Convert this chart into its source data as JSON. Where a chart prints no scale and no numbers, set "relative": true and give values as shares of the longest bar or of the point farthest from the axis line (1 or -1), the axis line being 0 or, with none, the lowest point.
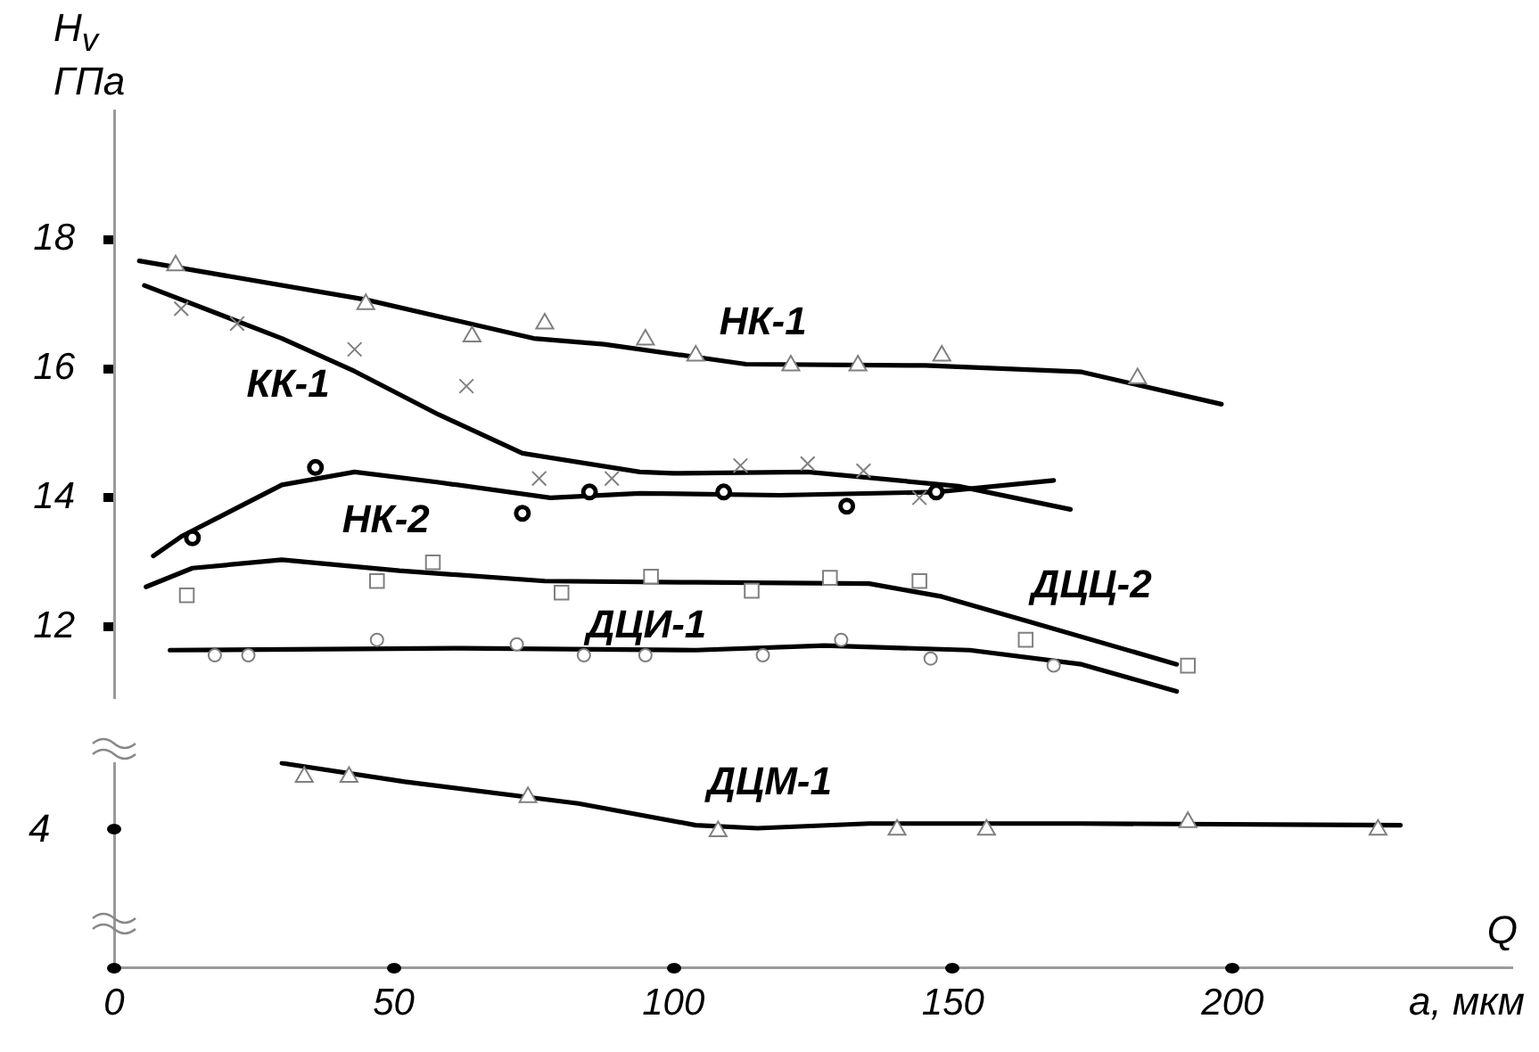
{
  "chart_data": [
    {
      "type": "line",
      "ylabel": "H$_{v}$ ГПа",
      "xticks": [
        0,
        50,
        100,
        150,
        200
      ],
      "ylim": [
        10.9,
        20
      ],
      "yticks": [
        12,
        14,
        16,
        18
      ],
      "tick_labels": "y",
      "grid": false,
      "legend": false,
      "series": [
        {
          "type": "scatter",
          "marker": "triangle",
          "color": "#808080",
          "x": [
            11,
            45,
            64,
            77,
            95,
            104,
            121,
            133,
            148,
            183
          ],
          "values": [
            17.6,
            17.0,
            16.5,
            16.7,
            16.45,
            16.2,
            16.05,
            16.05,
            16.2,
            15.85
          ]
        },
        {
          "type": "line",
          "name": "НК-1",
          "marker": "none",
          "line_style": "solid",
          "color": "#000000",
          "x": [
            4.5,
            45,
            75,
            87.6,
            113,
            145,
            173,
            198
          ],
          "values": [
            17.67,
            17.07,
            16.47,
            16.38,
            16.07,
            16.05,
            15.95,
            15.45
          ]
        },
        {
          "type": "scatter",
          "marker": "cross",
          "color": "#808080",
          "x": [
            12,
            22,
            43,
            63,
            76,
            89,
            112,
            124,
            134,
            144
          ],
          "values": [
            16.93,
            16.7,
            16.3,
            15.73,
            14.3,
            14.3,
            14.5,
            14.53,
            14.42,
            14.0
          ]
        },
        {
          "type": "line",
          "name": "КК-1",
          "marker": "none",
          "line_style": "solid",
          "color": "#000000",
          "x": [
            5.4,
            30,
            43,
            58,
            73,
            94,
            100,
            124,
            151,
            171
          ],
          "values": [
            17.29,
            16.47,
            15.96,
            15.29,
            14.69,
            14.4,
            14.38,
            14.4,
            14.18,
            13.82
          ]
        },
        {
          "type": "scatter",
          "marker": "circle",
          "color": "#000000",
          "x": [
            14,
            36,
            73,
            85,
            109,
            131,
            147
          ],
          "values": [
            13.38,
            14.47,
            13.76,
            14.09,
            14.09,
            13.87,
            14.09
          ]
        },
        {
          "type": "line",
          "name": "НК-2",
          "marker": "none",
          "line_style": "solid",
          "color": "#000000",
          "x": [
            7,
            12,
            30,
            43,
            58,
            78,
            94,
            119,
            147,
            168
          ],
          "values": [
            13.1,
            13.4,
            14.2,
            14.4,
            14.24,
            14.0,
            14.07,
            14.04,
            14.09,
            14.27
          ]
        },
        {
          "type": "scatter",
          "marker": "square",
          "color": "#808080",
          "x": [
            13,
            47,
            57,
            80,
            96,
            114,
            128,
            144,
            163,
            192
          ],
          "values": [
            12.49,
            12.71,
            13.0,
            12.53,
            12.78,
            12.56,
            12.76,
            12.71,
            11.8,
            11.4
          ]
        },
        {
          "type": "line",
          "name": "ДЦЦ-2",
          "marker": "none",
          "line_style": "solid",
          "color": "#000000",
          "x": [
            5.7,
            14,
            30,
            51,
            77,
            104,
            135,
            148,
            164,
            190
          ],
          "values": [
            12.62,
            12.91,
            13.04,
            12.87,
            12.71,
            12.69,
            12.67,
            12.47,
            12.07,
            11.42
          ]
        },
        {
          "type": "scatter",
          "marker": "circle",
          "color": "#808080",
          "x": [
            18,
            24,
            47,
            72,
            84,
            95,
            116,
            130,
            146,
            168
          ],
          "values": [
            11.56,
            11.56,
            11.8,
            11.73,
            11.56,
            11.56,
            11.56,
            11.8,
            11.51,
            11.4
          ]
        },
        {
          "type": "line",
          "name": "ДЦИ-1",
          "marker": "none",
          "line_style": "solid",
          "color": "#000000",
          "x": [
            10,
            62,
            104,
            127,
            153,
            173,
            190
          ],
          "values": [
            11.64,
            11.67,
            11.64,
            11.71,
            11.64,
            11.42,
            11.0
          ]
        }
      ]
    },
    {
      "type": "line",
      "xlabel": "a, мкм",
      "annotations": [
        "Q",
        "4"
      ],
      "relative": true,
      "xlim": [
        0,
        250
      ],
      "xticks": [
        0,
        50,
        100,
        150,
        200
      ],
      "grid": false,
      "legend": false,
      "series": [
        {
          "type": "scatter",
          "marker": "triangle",
          "color": "#808080",
          "x": [
            34,
            42,
            74,
            108,
            140,
            156,
            192,
            226
          ],
          "values": [
            0.932,
            0.932,
            0.833,
            0.667,
            0.674,
            0.674,
            0.712,
            0.674
          ]
        },
        {
          "type": "line",
          "name": "ДЦМ-1",
          "marker": "none",
          "line_style": "solid",
          "color": "#000000",
          "x": [
            30,
            52,
            83,
            104,
            115,
            135,
            173,
            230
          ],
          "values": [
            1,
            0.909,
            0.803,
            0.697,
            0.682,
            0.705,
            0.705,
            0.697
          ]
        }
      ]
    }
  ]
}
